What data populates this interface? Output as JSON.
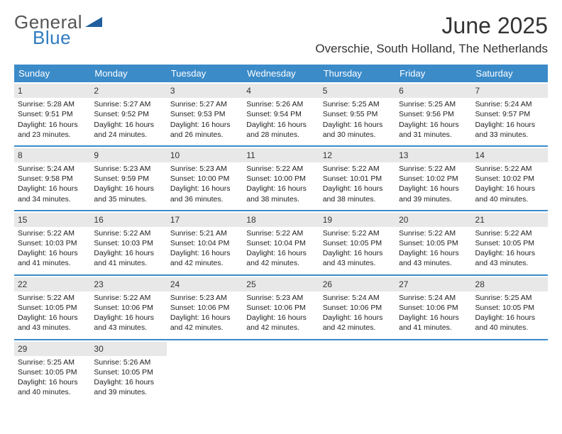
{
  "logo": {
    "text1": "General",
    "text2": "Blue",
    "triangle_color": "#1f5f9e"
  },
  "title": "June 2025",
  "location": "Overschie, South Holland, The Netherlands",
  "colors": {
    "header_bg": "#3b8bc9",
    "header_text": "#ffffff",
    "daynum_bg": "#e8e8e8",
    "week_divider": "#3b8bc9",
    "body_text": "#222222",
    "background": "#ffffff"
  },
  "day_labels": [
    "Sunday",
    "Monday",
    "Tuesday",
    "Wednesday",
    "Thursday",
    "Friday",
    "Saturday"
  ],
  "weeks": [
    [
      {
        "n": "1",
        "sr": "Sunrise: 5:28 AM",
        "ss": "Sunset: 9:51 PM",
        "d1": "Daylight: 16 hours",
        "d2": "and 23 minutes."
      },
      {
        "n": "2",
        "sr": "Sunrise: 5:27 AM",
        "ss": "Sunset: 9:52 PM",
        "d1": "Daylight: 16 hours",
        "d2": "and 24 minutes."
      },
      {
        "n": "3",
        "sr": "Sunrise: 5:27 AM",
        "ss": "Sunset: 9:53 PM",
        "d1": "Daylight: 16 hours",
        "d2": "and 26 minutes."
      },
      {
        "n": "4",
        "sr": "Sunrise: 5:26 AM",
        "ss": "Sunset: 9:54 PM",
        "d1": "Daylight: 16 hours",
        "d2": "and 28 minutes."
      },
      {
        "n": "5",
        "sr": "Sunrise: 5:25 AM",
        "ss": "Sunset: 9:55 PM",
        "d1": "Daylight: 16 hours",
        "d2": "and 30 minutes."
      },
      {
        "n": "6",
        "sr": "Sunrise: 5:25 AM",
        "ss": "Sunset: 9:56 PM",
        "d1": "Daylight: 16 hours",
        "d2": "and 31 minutes."
      },
      {
        "n": "7",
        "sr": "Sunrise: 5:24 AM",
        "ss": "Sunset: 9:57 PM",
        "d1": "Daylight: 16 hours",
        "d2": "and 33 minutes."
      }
    ],
    [
      {
        "n": "8",
        "sr": "Sunrise: 5:24 AM",
        "ss": "Sunset: 9:58 PM",
        "d1": "Daylight: 16 hours",
        "d2": "and 34 minutes."
      },
      {
        "n": "9",
        "sr": "Sunrise: 5:23 AM",
        "ss": "Sunset: 9:59 PM",
        "d1": "Daylight: 16 hours",
        "d2": "and 35 minutes."
      },
      {
        "n": "10",
        "sr": "Sunrise: 5:23 AM",
        "ss": "Sunset: 10:00 PM",
        "d1": "Daylight: 16 hours",
        "d2": "and 36 minutes."
      },
      {
        "n": "11",
        "sr": "Sunrise: 5:22 AM",
        "ss": "Sunset: 10:00 PM",
        "d1": "Daylight: 16 hours",
        "d2": "and 38 minutes."
      },
      {
        "n": "12",
        "sr": "Sunrise: 5:22 AM",
        "ss": "Sunset: 10:01 PM",
        "d1": "Daylight: 16 hours",
        "d2": "and 38 minutes."
      },
      {
        "n": "13",
        "sr": "Sunrise: 5:22 AM",
        "ss": "Sunset: 10:02 PM",
        "d1": "Daylight: 16 hours",
        "d2": "and 39 minutes."
      },
      {
        "n": "14",
        "sr": "Sunrise: 5:22 AM",
        "ss": "Sunset: 10:02 PM",
        "d1": "Daylight: 16 hours",
        "d2": "and 40 minutes."
      }
    ],
    [
      {
        "n": "15",
        "sr": "Sunrise: 5:22 AM",
        "ss": "Sunset: 10:03 PM",
        "d1": "Daylight: 16 hours",
        "d2": "and 41 minutes."
      },
      {
        "n": "16",
        "sr": "Sunrise: 5:22 AM",
        "ss": "Sunset: 10:03 PM",
        "d1": "Daylight: 16 hours",
        "d2": "and 41 minutes."
      },
      {
        "n": "17",
        "sr": "Sunrise: 5:21 AM",
        "ss": "Sunset: 10:04 PM",
        "d1": "Daylight: 16 hours",
        "d2": "and 42 minutes."
      },
      {
        "n": "18",
        "sr": "Sunrise: 5:22 AM",
        "ss": "Sunset: 10:04 PM",
        "d1": "Daylight: 16 hours",
        "d2": "and 42 minutes."
      },
      {
        "n": "19",
        "sr": "Sunrise: 5:22 AM",
        "ss": "Sunset: 10:05 PM",
        "d1": "Daylight: 16 hours",
        "d2": "and 43 minutes."
      },
      {
        "n": "20",
        "sr": "Sunrise: 5:22 AM",
        "ss": "Sunset: 10:05 PM",
        "d1": "Daylight: 16 hours",
        "d2": "and 43 minutes."
      },
      {
        "n": "21",
        "sr": "Sunrise: 5:22 AM",
        "ss": "Sunset: 10:05 PM",
        "d1": "Daylight: 16 hours",
        "d2": "and 43 minutes."
      }
    ],
    [
      {
        "n": "22",
        "sr": "Sunrise: 5:22 AM",
        "ss": "Sunset: 10:05 PM",
        "d1": "Daylight: 16 hours",
        "d2": "and 43 minutes."
      },
      {
        "n": "23",
        "sr": "Sunrise: 5:22 AM",
        "ss": "Sunset: 10:06 PM",
        "d1": "Daylight: 16 hours",
        "d2": "and 43 minutes."
      },
      {
        "n": "24",
        "sr": "Sunrise: 5:23 AM",
        "ss": "Sunset: 10:06 PM",
        "d1": "Daylight: 16 hours",
        "d2": "and 42 minutes."
      },
      {
        "n": "25",
        "sr": "Sunrise: 5:23 AM",
        "ss": "Sunset: 10:06 PM",
        "d1": "Daylight: 16 hours",
        "d2": "and 42 minutes."
      },
      {
        "n": "26",
        "sr": "Sunrise: 5:24 AM",
        "ss": "Sunset: 10:06 PM",
        "d1": "Daylight: 16 hours",
        "d2": "and 42 minutes."
      },
      {
        "n": "27",
        "sr": "Sunrise: 5:24 AM",
        "ss": "Sunset: 10:06 PM",
        "d1": "Daylight: 16 hours",
        "d2": "and 41 minutes."
      },
      {
        "n": "28",
        "sr": "Sunrise: 5:25 AM",
        "ss": "Sunset: 10:05 PM",
        "d1": "Daylight: 16 hours",
        "d2": "and 40 minutes."
      }
    ],
    [
      {
        "n": "29",
        "sr": "Sunrise: 5:25 AM",
        "ss": "Sunset: 10:05 PM",
        "d1": "Daylight: 16 hours",
        "d2": "and 40 minutes."
      },
      {
        "n": "30",
        "sr": "Sunrise: 5:26 AM",
        "ss": "Sunset: 10:05 PM",
        "d1": "Daylight: 16 hours",
        "d2": "and 39 minutes."
      },
      null,
      null,
      null,
      null,
      null
    ]
  ]
}
